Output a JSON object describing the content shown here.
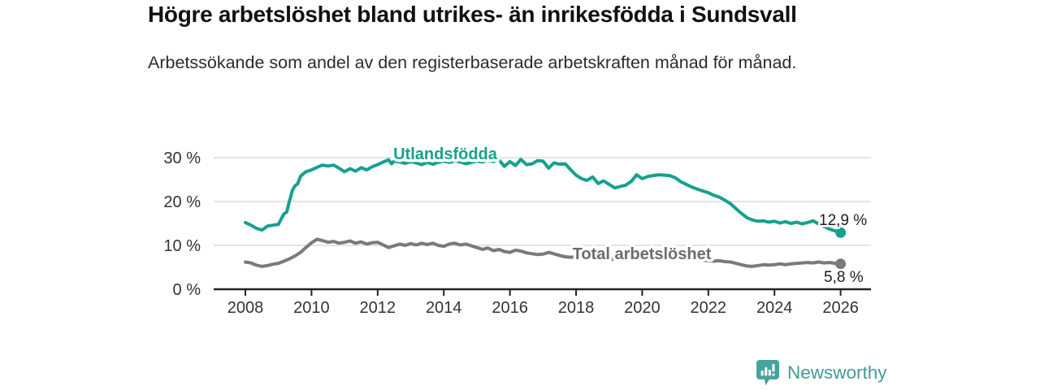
{
  "header": {
    "title": "Högre arbetslöshet bland utrikes- än inrikesfödda i Sundsvall",
    "subtitle": "Arbetssökande som andel av den registerbaserade arbetskraften månad för månad."
  },
  "chart_data": {
    "type": "line",
    "unit": "%",
    "grid": "horizontal-only",
    "xlim": [
      2007.1,
      2026.9
    ],
    "ylim": [
      0,
      33
    ],
    "x_ticks": [
      {
        "value": 2008,
        "label": "2008"
      },
      {
        "value": 2010,
        "label": "2010"
      },
      {
        "value": 2012,
        "label": "2012"
      },
      {
        "value": 2014,
        "label": "2014"
      },
      {
        "value": 2016,
        "label": "2016"
      },
      {
        "value": 2018,
        "label": "2018"
      },
      {
        "value": 2020,
        "label": "2020"
      },
      {
        "value": 2022,
        "label": "2022"
      },
      {
        "value": 2024,
        "label": "2024"
      },
      {
        "value": 2026,
        "label": "2026"
      }
    ],
    "y_ticks": [
      {
        "value": 30,
        "label": "30 %"
      },
      {
        "value": 20,
        "label": "20 %"
      },
      {
        "value": 10,
        "label": "10 %"
      },
      {
        "value": 0,
        "label": "0 %"
      }
    ],
    "series": [
      {
        "name": "Utlandsfödda",
        "color": "#17a08e",
        "label_color": "#17a08e",
        "end_label": "12,9 %",
        "end_value": 12.9,
        "points": [
          [
            2008.0,
            15.2
          ],
          [
            2008.17,
            14.6
          ],
          [
            2008.33,
            13.9
          ],
          [
            2008.5,
            13.5
          ],
          [
            2008.67,
            14.4
          ],
          [
            2008.83,
            14.6
          ],
          [
            2009.0,
            14.8
          ],
          [
            2009.08,
            16.0
          ],
          [
            2009.17,
            17.2
          ],
          [
            2009.25,
            17.6
          ],
          [
            2009.33,
            20.0
          ],
          [
            2009.42,
            22.5
          ],
          [
            2009.5,
            23.6
          ],
          [
            2009.58,
            24.0
          ],
          [
            2009.67,
            25.8
          ],
          [
            2009.83,
            26.8
          ],
          [
            2010.0,
            27.2
          ],
          [
            2010.17,
            27.8
          ],
          [
            2010.33,
            28.3
          ],
          [
            2010.5,
            28.1
          ],
          [
            2010.67,
            28.3
          ],
          [
            2010.83,
            27.6
          ],
          [
            2011.0,
            26.8
          ],
          [
            2011.17,
            27.5
          ],
          [
            2011.33,
            26.9
          ],
          [
            2011.5,
            27.7
          ],
          [
            2011.67,
            27.2
          ],
          [
            2011.83,
            27.9
          ],
          [
            2012.0,
            28.4
          ],
          [
            2012.17,
            29.0
          ],
          [
            2012.33,
            29.5
          ],
          [
            2012.42,
            28.6
          ],
          [
            2012.5,
            29.2
          ],
          [
            2012.67,
            29.0
          ],
          [
            2012.83,
            28.7
          ],
          [
            2013.0,
            29.1
          ],
          [
            2013.17,
            28.8
          ],
          [
            2013.33,
            28.4
          ],
          [
            2013.5,
            28.9
          ],
          [
            2013.67,
            28.5
          ],
          [
            2013.83,
            28.9
          ],
          [
            2014.0,
            29.2
          ],
          [
            2014.17,
            28.9
          ],
          [
            2014.33,
            29.3
          ],
          [
            2014.5,
            29.0
          ],
          [
            2014.67,
            28.6
          ],
          [
            2014.83,
            28.9
          ],
          [
            2015.0,
            29.2
          ],
          [
            2015.17,
            29.0
          ],
          [
            2015.33,
            29.4
          ],
          [
            2015.5,
            29.1
          ],
          [
            2015.67,
            29.5
          ],
          [
            2015.83,
            28.0
          ],
          [
            2016.0,
            29.1
          ],
          [
            2016.17,
            28.2
          ],
          [
            2016.33,
            29.6
          ],
          [
            2016.5,
            28.4
          ],
          [
            2016.67,
            28.6
          ],
          [
            2016.83,
            29.3
          ],
          [
            2017.0,
            29.2
          ],
          [
            2017.17,
            27.6
          ],
          [
            2017.33,
            28.8
          ],
          [
            2017.5,
            28.5
          ],
          [
            2017.67,
            28.6
          ],
          [
            2017.83,
            27.3
          ],
          [
            2018.0,
            26.0
          ],
          [
            2018.17,
            25.2
          ],
          [
            2018.33,
            24.8
          ],
          [
            2018.5,
            25.6
          ],
          [
            2018.67,
            24.1
          ],
          [
            2018.83,
            24.7
          ],
          [
            2019.0,
            23.9
          ],
          [
            2019.17,
            23.1
          ],
          [
            2019.33,
            23.4
          ],
          [
            2019.5,
            23.7
          ],
          [
            2019.67,
            24.6
          ],
          [
            2019.83,
            26.1
          ],
          [
            2020.0,
            25.2
          ],
          [
            2020.17,
            25.7
          ],
          [
            2020.33,
            25.9
          ],
          [
            2020.5,
            26.1
          ],
          [
            2020.67,
            26.0
          ],
          [
            2020.83,
            25.9
          ],
          [
            2021.0,
            25.4
          ],
          [
            2021.17,
            24.5
          ],
          [
            2021.33,
            23.9
          ],
          [
            2021.5,
            23.3
          ],
          [
            2021.67,
            22.8
          ],
          [
            2021.83,
            22.4
          ],
          [
            2022.0,
            22.0
          ],
          [
            2022.17,
            21.4
          ],
          [
            2022.33,
            21.0
          ],
          [
            2022.5,
            20.3
          ],
          [
            2022.67,
            19.5
          ],
          [
            2022.83,
            18.4
          ],
          [
            2023.0,
            17.3
          ],
          [
            2023.17,
            16.3
          ],
          [
            2023.33,
            15.8
          ],
          [
            2023.5,
            15.5
          ],
          [
            2023.67,
            15.6
          ],
          [
            2023.83,
            15.3
          ],
          [
            2024.0,
            15.5
          ],
          [
            2024.17,
            15.1
          ],
          [
            2024.33,
            15.4
          ],
          [
            2024.5,
            15.0
          ],
          [
            2024.67,
            15.3
          ],
          [
            2024.83,
            14.9
          ],
          [
            2025.0,
            15.2
          ],
          [
            2025.17,
            15.6
          ],
          [
            2025.33,
            14.9
          ],
          [
            2025.5,
            14.3
          ],
          [
            2025.67,
            13.7
          ],
          [
            2025.83,
            13.3
          ],
          [
            2026.0,
            12.9
          ]
        ]
      },
      {
        "name": "Total arbetslöshet",
        "color": "#7a7a7e",
        "label_color": "#6c6c71",
        "end_label": "5,8 %",
        "end_value": 5.8,
        "points": [
          [
            2008.0,
            6.2
          ],
          [
            2008.17,
            6.0
          ],
          [
            2008.33,
            5.5
          ],
          [
            2008.5,
            5.2
          ],
          [
            2008.67,
            5.4
          ],
          [
            2008.83,
            5.7
          ],
          [
            2009.0,
            5.9
          ],
          [
            2009.17,
            6.4
          ],
          [
            2009.33,
            6.9
          ],
          [
            2009.5,
            7.6
          ],
          [
            2009.67,
            8.4
          ],
          [
            2009.83,
            9.5
          ],
          [
            2010.0,
            10.6
          ],
          [
            2010.17,
            11.4
          ],
          [
            2010.33,
            11.1
          ],
          [
            2010.5,
            10.7
          ],
          [
            2010.67,
            10.9
          ],
          [
            2010.83,
            10.5
          ],
          [
            2011.0,
            10.7
          ],
          [
            2011.17,
            11.0
          ],
          [
            2011.33,
            10.5
          ],
          [
            2011.5,
            10.8
          ],
          [
            2011.67,
            10.3
          ],
          [
            2011.83,
            10.6
          ],
          [
            2012.0,
            10.7
          ],
          [
            2012.17,
            10.1
          ],
          [
            2012.33,
            9.5
          ],
          [
            2012.5,
            9.9
          ],
          [
            2012.67,
            10.3
          ],
          [
            2012.83,
            10.0
          ],
          [
            2013.0,
            10.4
          ],
          [
            2013.17,
            10.1
          ],
          [
            2013.33,
            10.5
          ],
          [
            2013.5,
            10.2
          ],
          [
            2013.67,
            10.5
          ],
          [
            2013.83,
            10.0
          ],
          [
            2014.0,
            9.8
          ],
          [
            2014.17,
            10.3
          ],
          [
            2014.33,
            10.5
          ],
          [
            2014.5,
            10.1
          ],
          [
            2014.67,
            10.3
          ],
          [
            2014.83,
            9.9
          ],
          [
            2015.0,
            9.5
          ],
          [
            2015.17,
            9.1
          ],
          [
            2015.33,
            9.4
          ],
          [
            2015.5,
            8.8
          ],
          [
            2015.67,
            9.1
          ],
          [
            2015.83,
            8.6
          ],
          [
            2016.0,
            8.4
          ],
          [
            2016.17,
            8.9
          ],
          [
            2016.33,
            8.7
          ],
          [
            2016.5,
            8.3
          ],
          [
            2016.67,
            8.1
          ],
          [
            2016.83,
            7.9
          ],
          [
            2017.0,
            8.0
          ],
          [
            2017.17,
            8.4
          ],
          [
            2017.33,
            8.1
          ],
          [
            2017.5,
            7.7
          ],
          [
            2017.67,
            7.4
          ],
          [
            2017.83,
            7.3
          ],
          [
            2018.0,
            7.4
          ],
          [
            2018.33,
            7.1
          ],
          [
            2018.67,
            6.9
          ],
          [
            2019.0,
            6.8
          ],
          [
            2019.33,
            6.9
          ],
          [
            2019.67,
            7.1
          ],
          [
            2020.0,
            7.4
          ],
          [
            2020.33,
            7.6
          ],
          [
            2020.67,
            7.5
          ],
          [
            2021.0,
            7.2
          ],
          [
            2021.33,
            6.9
          ],
          [
            2021.67,
            6.7
          ],
          [
            2022.0,
            6.5
          ],
          [
            2022.17,
            6.4
          ],
          [
            2022.33,
            6.5
          ],
          [
            2022.5,
            6.3
          ],
          [
            2022.67,
            6.2
          ],
          [
            2022.83,
            5.9
          ],
          [
            2023.0,
            5.6
          ],
          [
            2023.17,
            5.3
          ],
          [
            2023.33,
            5.2
          ],
          [
            2023.5,
            5.4
          ],
          [
            2023.67,
            5.6
          ],
          [
            2023.83,
            5.5
          ],
          [
            2024.0,
            5.6
          ],
          [
            2024.17,
            5.8
          ],
          [
            2024.33,
            5.6
          ],
          [
            2024.5,
            5.8
          ],
          [
            2024.67,
            5.9
          ],
          [
            2024.83,
            6.0
          ],
          [
            2025.0,
            6.1
          ],
          [
            2025.17,
            6.0
          ],
          [
            2025.33,
            6.2
          ],
          [
            2025.5,
            6.0
          ],
          [
            2025.67,
            6.1
          ],
          [
            2025.83,
            5.9
          ],
          [
            2026.0,
            5.8
          ]
        ]
      }
    ]
  },
  "footer": {
    "brand": "Newsworthy"
  },
  "colors": {
    "accent_teal": "#17a08e",
    "line_gray": "#7a7a7e",
    "label_gray": "#6c6c71",
    "grid": "#dcdcdc",
    "axis": "#232323",
    "title_text": "#111111",
    "logo_teal": "#45a39b",
    "wordmark_teal": "#3f9d96"
  }
}
